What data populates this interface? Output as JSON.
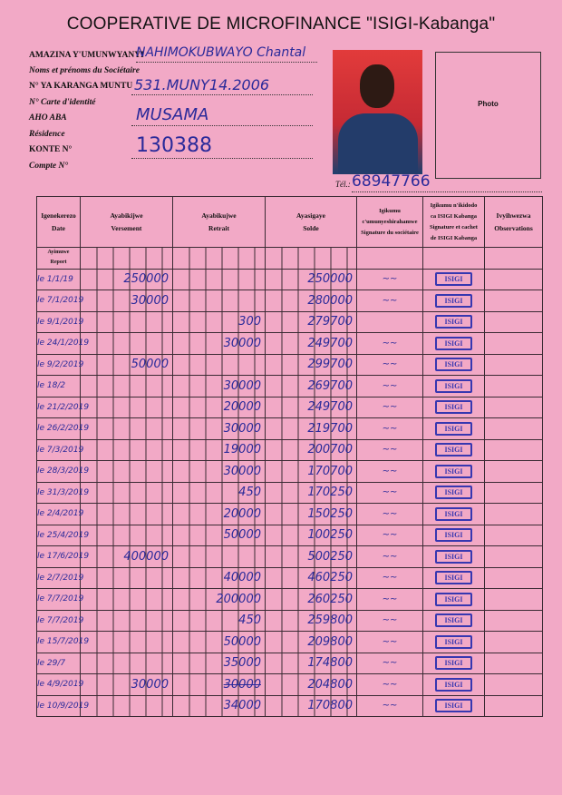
{
  "title": "COOPERATIVE DE MICROFINANCE \"ISIGI-Kabanga\"",
  "fields": [
    {
      "label": "AMAZINA Y'UMUNWYANYI",
      "sublabel": "Noms et prénoms du Sociétaire",
      "value": "NAHIMOKUBWAYO Chantal"
    },
    {
      "label": "N° YA KARANGA MUNTU",
      "sublabel": "N° Carte d'identité",
      "value": "531.MUNY14.2006"
    },
    {
      "label": "AHO ABA",
      "sublabel": "Résidence",
      "value": "MUSAMA"
    },
    {
      "label": "KONTE N°",
      "sublabel": "Compte N°",
      "value": "130388"
    }
  ],
  "photo_label": "Photo",
  "tel_label": "Tél.:",
  "tel_value": "68947766",
  "columns": [
    {
      "line1": "Igenekerezo",
      "line2": "Date"
    },
    {
      "line1": "Ayabikijwe",
      "line2": "Versement"
    },
    {
      "line1": "Ayabikujwe",
      "line2": "Retrait"
    },
    {
      "line1": "Ayasigaye",
      "line2": "Solde"
    },
    {
      "line1": "Igikumu",
      "line2": "c'umunyeshirahamwe",
      "line3": "Signature du sociétaire"
    },
    {
      "line1": "Igikumu n'ikidodo",
      "line2": "ca ISIGI Kabanga",
      "line3": "Signature et cachet",
      "line4": "de ISIGI Kabanga"
    },
    {
      "line1": "Ivyihwezwa",
      "line2": "Observations"
    }
  ],
  "report_label_1": "Ayimuwe",
  "report_label_2": "Report",
  "stamp_text": "ISIGI",
  "rows": [
    {
      "date": "le 1/1/19",
      "versement": "250000",
      "retrait": "",
      "solde": "250000",
      "sig": "~~"
    },
    {
      "date": "le 7/1/2019",
      "versement": "30000",
      "retrait": "",
      "solde": "280000",
      "sig": "~~"
    },
    {
      "date": "le 9/1/2019",
      "versement": "",
      "retrait": "300",
      "solde": "279700",
      "sig": ""
    },
    {
      "date": "le 24/1/2019",
      "versement": "",
      "retrait": "30000",
      "solde": "249700",
      "sig": "~~"
    },
    {
      "date": "le 9/2/2019",
      "versement": "50000",
      "retrait": "",
      "solde": "299700",
      "sig": "~~"
    },
    {
      "date": "le 18/2",
      "versement": "",
      "retrait": "30000",
      "solde": "269700",
      "sig": "~~"
    },
    {
      "date": "le 21/2/2019",
      "versement": "",
      "retrait": "20000",
      "solde": "249700",
      "sig": "~~"
    },
    {
      "date": "le 26/2/2019",
      "versement": "",
      "retrait": "30000",
      "solde": "219700",
      "sig": "~~"
    },
    {
      "date": "le 7/3/2019",
      "versement": "",
      "retrait": "19000",
      "solde": "200700",
      "sig": "~~"
    },
    {
      "date": "le 28/3/2019",
      "versement": "",
      "retrait": "30000",
      "solde": "170700",
      "sig": "~~"
    },
    {
      "date": "le 31/3/2019",
      "versement": "",
      "retrait": "450",
      "solde": "170250",
      "sig": "~~"
    },
    {
      "date": "le 2/4/2019",
      "versement": "",
      "retrait": "20000",
      "solde": "150250",
      "sig": "~~"
    },
    {
      "date": "le 25/4/2019",
      "versement": "",
      "retrait": "50000",
      "solde": "100250",
      "sig": "~~"
    },
    {
      "date": "le 17/6/2019",
      "versement": "400000",
      "retrait": "",
      "solde": "500250",
      "sig": "~~"
    },
    {
      "date": "le 2/7/2019",
      "versement": "",
      "retrait": "40000",
      "solde": "460250",
      "sig": "~~"
    },
    {
      "date": "le 7/7/2019",
      "versement": "",
      "retrait": "200000",
      "solde": "260250",
      "sig": "~~"
    },
    {
      "date": "le 7/7/2019",
      "versement": "",
      "retrait": "450",
      "solde": "259800",
      "sig": "~~"
    },
    {
      "date": "le 15/7/2019",
      "versement": "",
      "retrait": "50000",
      "solde": "209800",
      "sig": "~~"
    },
    {
      "date": "le 29/7",
      "versement": "",
      "retrait": "35000",
      "solde": "174800",
      "sig": "~~"
    },
    {
      "date": "le 4/9/2019",
      "versement": "30000",
      "retrait": "30000",
      "retrait_struck": true,
      "solde": "204800",
      "sig": "~~"
    },
    {
      "date": "le 10/9/2019",
      "versement": "",
      "retrait": "34000",
      "solde": "170800",
      "sig": "~~"
    }
  ],
  "colors": {
    "paper": "#f2a9c6",
    "ink": "#2a2a9a",
    "stamp": "#3737b0"
  }
}
